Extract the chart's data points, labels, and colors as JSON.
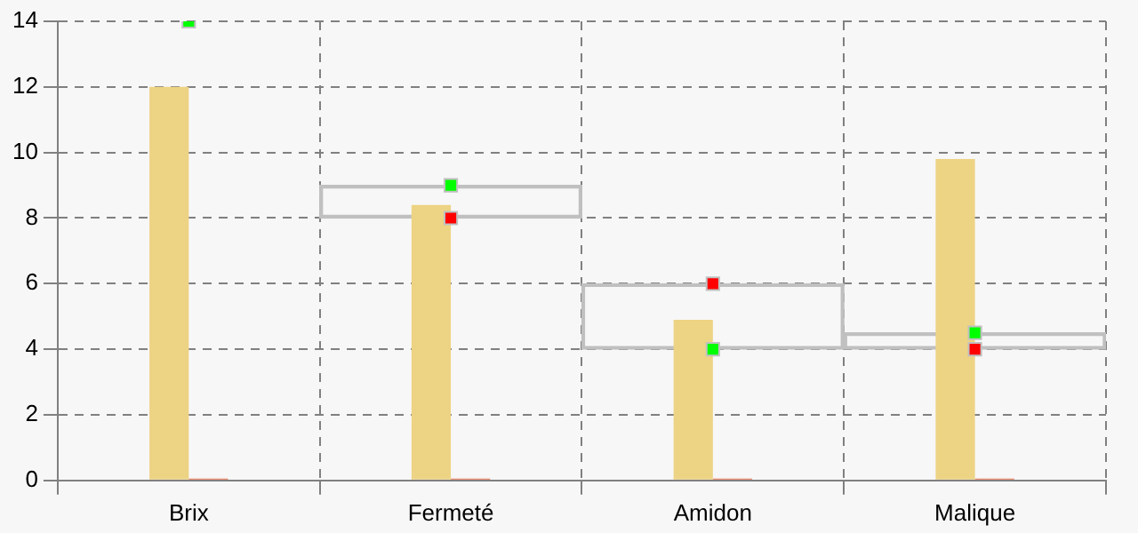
{
  "chart_data": {
    "type": "bar",
    "categories": [
      "Brix",
      "Fermeté",
      "Amidon",
      "Malique"
    ],
    "series": [
      {
        "color": "#c0c0c0",
        "base": [
          null,
          8,
          4,
          4
        ],
        "values": [
          null,
          1,
          2,
          0.5
        ]
      },
      {
        "color": "#edd384",
        "values": [
          12,
          8.4,
          4.9,
          9.8
        ]
      },
      {
        "color": "#e8704a",
        "values": [
          0,
          0,
          0,
          0
        ]
      },
      {
        "type": "scatter",
        "color": "#00ff00",
        "values": [
          14,
          9,
          4,
          4.5
        ]
      },
      {
        "type": "scatter",
        "color": "#ff0000",
        "values": [
          null,
          8,
          6,
          4
        ]
      }
    ],
    "ylim": [
      0,
      14
    ],
    "yticks": [
      0,
      2,
      4,
      6,
      8,
      10,
      12,
      14
    ],
    "grid": true,
    "legend": false
  }
}
